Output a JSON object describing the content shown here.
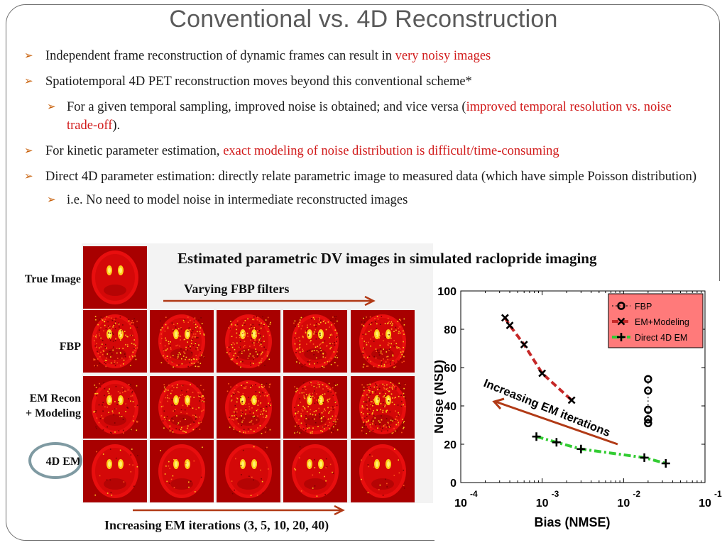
{
  "slide": {
    "title": "Conventional vs. 4D Reconstruction",
    "bullets": [
      {
        "text": "Independent frame reconstruction of dynamic frames can result in ",
        "highlight": "very noisy images"
      },
      {
        "text": "Spatiotemporal 4D PET reconstruction moves beyond this conventional scheme*"
      },
      {
        "text": "For a given temporal sampling, improved noise is obtained; and vice versa (",
        "highlight": "improved temporal resolution vs. noise trade-off",
        "tail": ")."
      },
      {
        "text": "For kinetic parameter estimation, ",
        "highlight": "exact modeling of noise distribution is difficult/time-consuming"
      },
      {
        "text": "Direct 4D parameter estimation: directly relate parametric image to measured data (which have simple Poisson distribution)"
      },
      {
        "text": "i.e. No need to model noise in intermediate reconstructed images"
      }
    ]
  },
  "figure": {
    "title": "Estimated parametric DV images in simulated raclopride imaging",
    "rows": [
      "True Image",
      "FBP",
      "EM Recon + Modeling",
      "4D EM"
    ],
    "row_label_em_line1": "EM Recon",
    "row_label_em_line2": "+ Modeling",
    "fbp_caption": "Varying FBP filters",
    "em_caption": "Increasing EM iterations (3, 5, 10, 20, 40)"
  },
  "colors": {
    "accent_arrow": "#c8600a",
    "highlight": "#d11a1a",
    "brown_arrow": "#b13a16",
    "fbp": "#1a1a1a",
    "em_modeling": "#c62828",
    "direct4d": "#33cc33"
  },
  "chart_data": {
    "type": "scatter",
    "xscale": "log",
    "xlim": [
      0.0001,
      0.1
    ],
    "ylim": [
      0,
      100
    ],
    "xlabel": "Bias (NMSE)",
    "ylabel": "Noise (NSD)",
    "xtick_labels": [
      {
        "base": "10",
        "exp": "-4",
        "value": 0.0001
      },
      {
        "base": "10",
        "exp": "-3",
        "value": 0.001
      },
      {
        "base": "10",
        "exp": "-2",
        "value": 0.01
      },
      {
        "base": "10",
        "exp": "-1",
        "value": 0.1
      }
    ],
    "ytick_labels": [
      "0",
      "20",
      "40",
      "60",
      "80",
      "100"
    ],
    "yticks": [
      0,
      20,
      40,
      60,
      80,
      100
    ],
    "legend_position": "top-right",
    "annotation": "Increasing EM iterations",
    "series": [
      {
        "name": "FBP",
        "marker": "o",
        "line": "dotted",
        "color": "#1a1a1a",
        "x": [
          0.02,
          0.02,
          0.02,
          0.02,
          0.02
        ],
        "y": [
          54,
          48,
          38,
          33,
          31
        ]
      },
      {
        "name": "EM+Modeling",
        "marker": "x",
        "line": "dashed",
        "color": "#c62828",
        "x": [
          0.00035,
          0.0004,
          0.0006,
          0.001,
          0.0023
        ],
        "y": [
          86,
          82,
          72,
          57,
          43
        ]
      },
      {
        "name": "Direct 4D EM",
        "marker": "+",
        "line": "dash-dot",
        "color": "#33cc33",
        "x": [
          0.00085,
          0.0015,
          0.003,
          0.018,
          0.033
        ],
        "y": [
          24,
          21,
          17.5,
          13,
          10
        ]
      }
    ]
  }
}
